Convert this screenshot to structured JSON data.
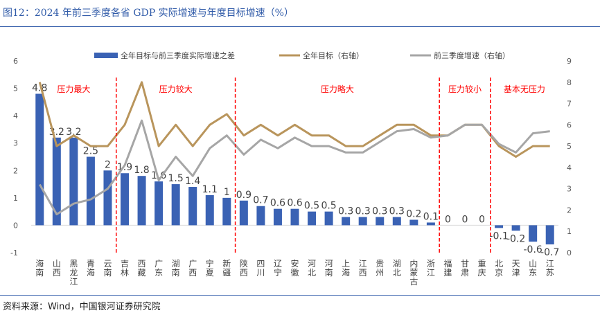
{
  "title": "图12：2024 年前三季度各省 GDP 实际增速与年度目标增速（%）",
  "source": "资料来源：Wind，中国银河证券研究院",
  "colors": {
    "bar": "#3a62b4",
    "target": "#b9955c",
    "actual": "#a6a6a6",
    "zone": "#ff0000",
    "title": "#2f5aa8"
  },
  "chart_data": {
    "type": "bar+line",
    "categories": [
      "海南",
      "山西",
      "黑龙江",
      "青海",
      "云南",
      "吉林",
      "西藏",
      "广东",
      "湖南",
      "广西",
      "宁夏",
      "新疆",
      "陕西",
      "四川",
      "辽宁",
      "安徽",
      "河北",
      "河南",
      "上海",
      "江西",
      "贵州",
      "湖北",
      "内蒙古",
      "浙江",
      "福建",
      "甘肃",
      "重庆",
      "北京",
      "天津",
      "山东",
      "江苏"
    ],
    "series": [
      {
        "name": "全年目标与前三季度实际增速之差",
        "axis": "left",
        "type": "bar",
        "values": [
          4.8,
          3.2,
          3.2,
          2.5,
          2,
          1.9,
          1.8,
          1.6,
          1.5,
          1.4,
          1.1,
          1,
          0.9,
          0.7,
          0.6,
          0.6,
          0.5,
          0.5,
          0.3,
          0.3,
          0.3,
          0.3,
          0.2,
          0.1,
          0,
          0,
          0,
          -0.1,
          -0.2,
          -0.6,
          -0.7
        ],
        "labels": [
          "4.8",
          "3.2",
          "3.2",
          "2.5",
          "2",
          "1.9",
          "1.8",
          "1.6",
          "1.5",
          "1.4",
          "1.1",
          "1",
          "0.9",
          "0.7",
          "0.6",
          "0.6",
          "0.5",
          "0.5",
          "0.3",
          "0.3",
          "0.3",
          "0.3",
          "0.2",
          "0.1",
          "0",
          "0",
          "0",
          "-0.1",
          "-0.2",
          "-0.6",
          "-0.7"
        ]
      },
      {
        "name": "全年目标（右轴）",
        "axis": "right",
        "type": "line",
        "values": [
          8,
          5,
          5.5,
          5,
          5,
          6,
          8,
          5,
          6,
          5,
          6,
          6.5,
          5.5,
          6,
          5.5,
          6,
          5.5,
          5.5,
          5,
          5,
          5.5,
          6,
          6,
          5.5,
          5.5,
          6,
          6,
          5,
          4.5,
          5,
          5
        ]
      },
      {
        "name": "前三季度增速（右轴）",
        "axis": "right",
        "type": "line",
        "values": [
          3.2,
          1.8,
          2.3,
          2.5,
          3,
          4.1,
          6.2,
          3.4,
          4.5,
          3.6,
          4.9,
          5.5,
          4.6,
          5.3,
          4.9,
          5.4,
          5,
          5,
          4.7,
          4.7,
          5.2,
          5.7,
          5.8,
          5.4,
          5.5,
          6,
          6,
          5.1,
          4.7,
          5.6,
          5.7
        ]
      }
    ],
    "left_axis": {
      "ylim": [
        -1,
        6
      ],
      "ticks": [
        "-1",
        "0",
        "1",
        "2",
        "3",
        "4",
        "5",
        "6"
      ]
    },
    "right_axis": {
      "ylim": [
        0,
        9
      ],
      "ticks": [
        "0",
        "1",
        "2",
        "3",
        "4",
        "5",
        "6",
        "7",
        "8",
        "9"
      ]
    },
    "zones": [
      {
        "label": "压力最大",
        "from": 0,
        "to": 4
      },
      {
        "label": "压力较大",
        "from": 5,
        "to": 11
      },
      {
        "label": "压力略大",
        "from": 12,
        "to": 23
      },
      {
        "label": "压力较小",
        "from": 24,
        "to": 26
      },
      {
        "label": "基本无压力",
        "from": 27,
        "to": 30
      }
    ],
    "legend": {
      "position": "top"
    },
    "grid": false
  }
}
